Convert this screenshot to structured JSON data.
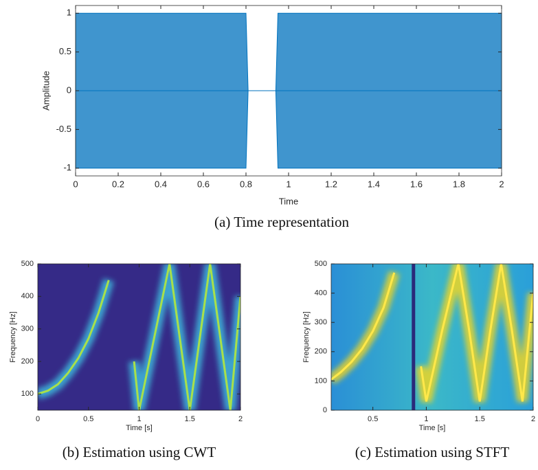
{
  "chart_data": [
    {
      "type": "area",
      "caption": "(a) Time representation",
      "xlabel": "Time",
      "ylabel": "Amplitude",
      "color": "#0072bd",
      "x": [
        0,
        0.2,
        0.4,
        0.6,
        0.8,
        0.81,
        0.94,
        0.95,
        1.2,
        1.4,
        1.6,
        1.8,
        2
      ],
      "upper": [
        1,
        1,
        1,
        1,
        1,
        0,
        0,
        1,
        1,
        1,
        1,
        1,
        1
      ],
      "lower": [
        -1,
        -1,
        -1,
        -1,
        -1,
        0,
        0,
        -1,
        -1,
        -1,
        -1,
        -1,
        -1
      ],
      "xlim": [
        0,
        2
      ],
      "ylim": [
        -1.1,
        1.1
      ],
      "xticks": [
        0,
        0.2,
        0.4,
        0.6,
        0.8,
        1,
        1.2,
        1.4,
        1.6,
        1.8,
        2
      ],
      "yticks": [
        -1,
        -0.5,
        0,
        0.5,
        1
      ]
    },
    {
      "type": "spectrogram",
      "caption": "(b) Estimation using CWT",
      "xlabel": "Time [s]",
      "ylabel": "Frequency [Hz]",
      "background": "#352a87",
      "color": "#3fc1e0",
      "x": [
        0,
        0.1,
        0.2,
        0.3,
        0.4,
        0.5,
        0.6,
        0.7,
        0.8,
        0.95,
        1.0,
        1.15,
        1.3,
        1.4,
        1.5,
        1.6,
        1.7,
        1.8,
        1.9,
        2.0
      ],
      "ridge": [
        100,
        110,
        130,
        165,
        210,
        270,
        350,
        450,
        null,
        200,
        50,
        275,
        500,
        275,
        50,
        275,
        500,
        275,
        50,
        400
      ],
      "xlim": [
        0,
        2
      ],
      "ylim": [
        50,
        500
      ],
      "xticks": [
        0,
        0.5,
        1,
        1.5,
        2
      ],
      "yticks": [
        100,
        200,
        300,
        400,
        500
      ]
    },
    {
      "type": "spectrogram",
      "caption": "(c) Estimation using STFT",
      "xlabel": "Time [s]",
      "ylabel": "Frequency [Hz]",
      "background": "#25a5d8",
      "color": "#f9d71c",
      "vlines": [
        0.88
      ],
      "x": [
        0.11,
        0.2,
        0.3,
        0.4,
        0.5,
        0.6,
        0.7,
        0.8,
        0.95,
        1.0,
        1.15,
        1.3,
        1.4,
        1.5,
        1.6,
        1.7,
        1.8,
        1.9,
        2.0
      ],
      "ridge": [
        105,
        130,
        165,
        210,
        270,
        350,
        470,
        null,
        150,
        30,
        275,
        500,
        275,
        30,
        275,
        500,
        275,
        30,
        400
      ],
      "xlim": [
        0.11,
        2
      ],
      "ylim": [
        0,
        500
      ],
      "xticks": [
        0.5,
        1,
        1.5,
        2
      ],
      "yticks": [
        0,
        100,
        200,
        300,
        400,
        500
      ]
    }
  ]
}
